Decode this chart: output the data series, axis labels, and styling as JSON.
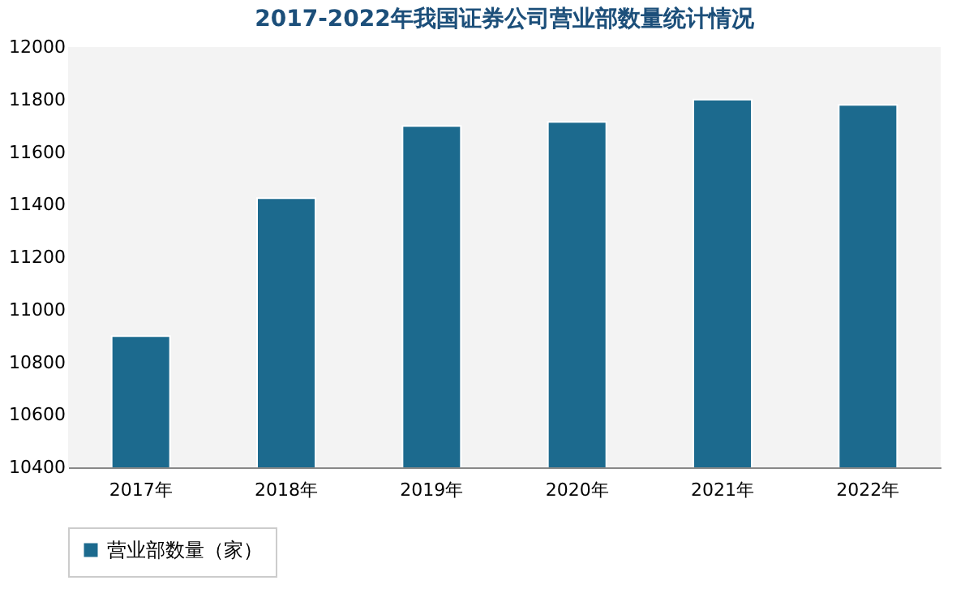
{
  "chart_data": {
    "type": "bar",
    "title": "2017-2022年我国证券公司营业部数量统计情况",
    "categories": [
      "2017年",
      "2018年",
      "2019年",
      "2020年",
      "2021年",
      "2022年"
    ],
    "series": [
      {
        "name": "营业部数量（家）",
        "color": "#1c6a8e",
        "values": [
          10900,
          11425,
          11700,
          11715,
          11800,
          11780
        ]
      }
    ],
    "ylim": [
      10400,
      12000
    ],
    "yticks": [
      10400,
      10600,
      10800,
      11000,
      11200,
      11400,
      11600,
      11800,
      12000
    ],
    "grid": false,
    "legend": "bottom"
  }
}
